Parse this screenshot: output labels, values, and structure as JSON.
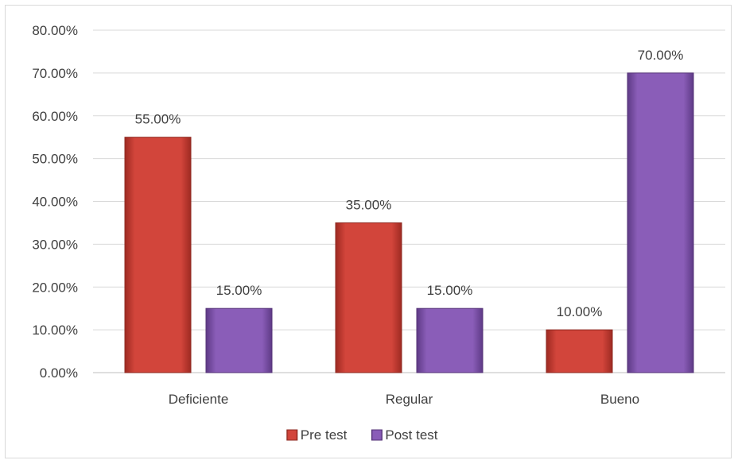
{
  "chart_data": {
    "type": "bar",
    "categories": [
      "Deficiente",
      "Regular",
      "Bueno"
    ],
    "series": [
      {
        "name": "Pre test",
        "values": [
          55,
          35,
          10
        ],
        "color": "#c0392b"
      },
      {
        "name": "Post test",
        "values": [
          15,
          15,
          70
        ],
        "color": "#7b4fa6"
      }
    ],
    "value_format": "percent_2dp",
    "ylim": [
      0,
      80
    ],
    "ytick_step": 10,
    "yticks": [
      "0.00%",
      "10.00%",
      "20.00%",
      "30.00%",
      "40.00%",
      "50.00%",
      "60.00%",
      "70.00%",
      "80.00%"
    ],
    "data_labels": [
      [
        "55.00%",
        "35.00%",
        "10.00%"
      ],
      [
        "15.00%",
        "15.00%",
        "70.00%"
      ]
    ],
    "grid": true,
    "legend_position": "bottom"
  }
}
